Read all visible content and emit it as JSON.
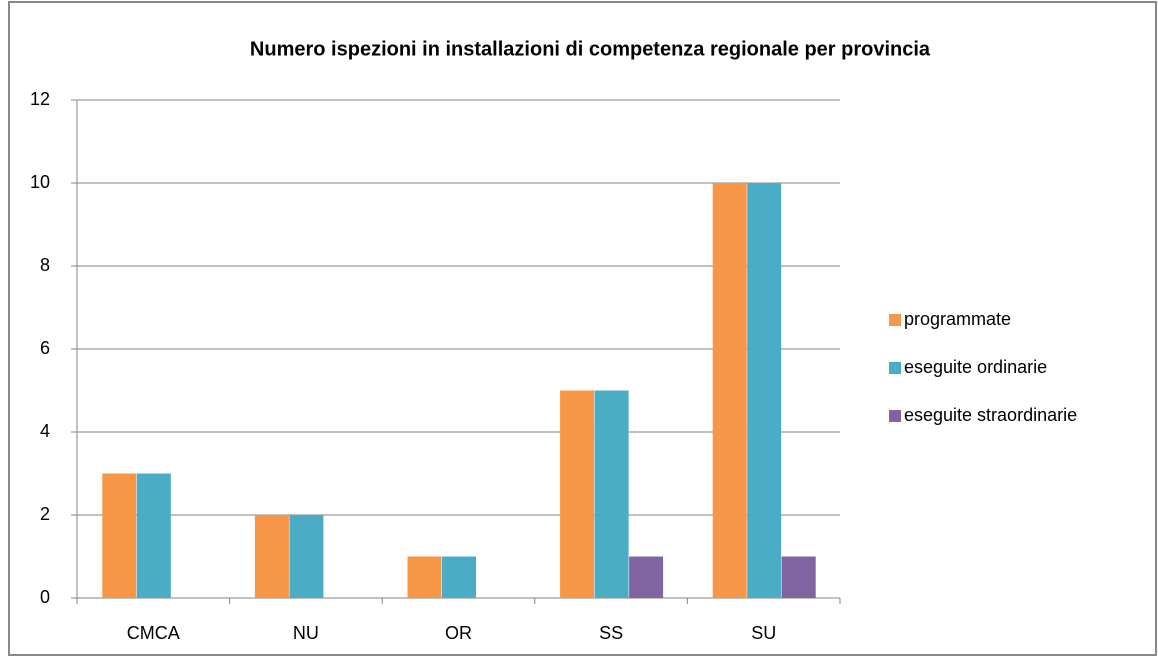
{
  "chart_data": {
    "type": "bar",
    "title": "Numero ispezioni in installazioni di competenza regionale per provincia",
    "categories": [
      "CMCA",
      "NU",
      "OR",
      "SS",
      "SU"
    ],
    "series": [
      {
        "name": "programmate",
        "color": "#f79646",
        "values": [
          3,
          2,
          1,
          5,
          10
        ]
      },
      {
        "name": "eseguite ordinarie",
        "color": "#4bacc6",
        "values": [
          3,
          2,
          1,
          5,
          10
        ]
      },
      {
        "name": "eseguite straordinarie",
        "color": "#8064a2",
        "values": [
          0,
          0,
          0,
          1,
          1
        ]
      }
    ],
    "ylim": [
      0,
      12
    ],
    "yticks": [
      0,
      2,
      4,
      6,
      8,
      10,
      12
    ],
    "grid": true,
    "legend": "right"
  }
}
